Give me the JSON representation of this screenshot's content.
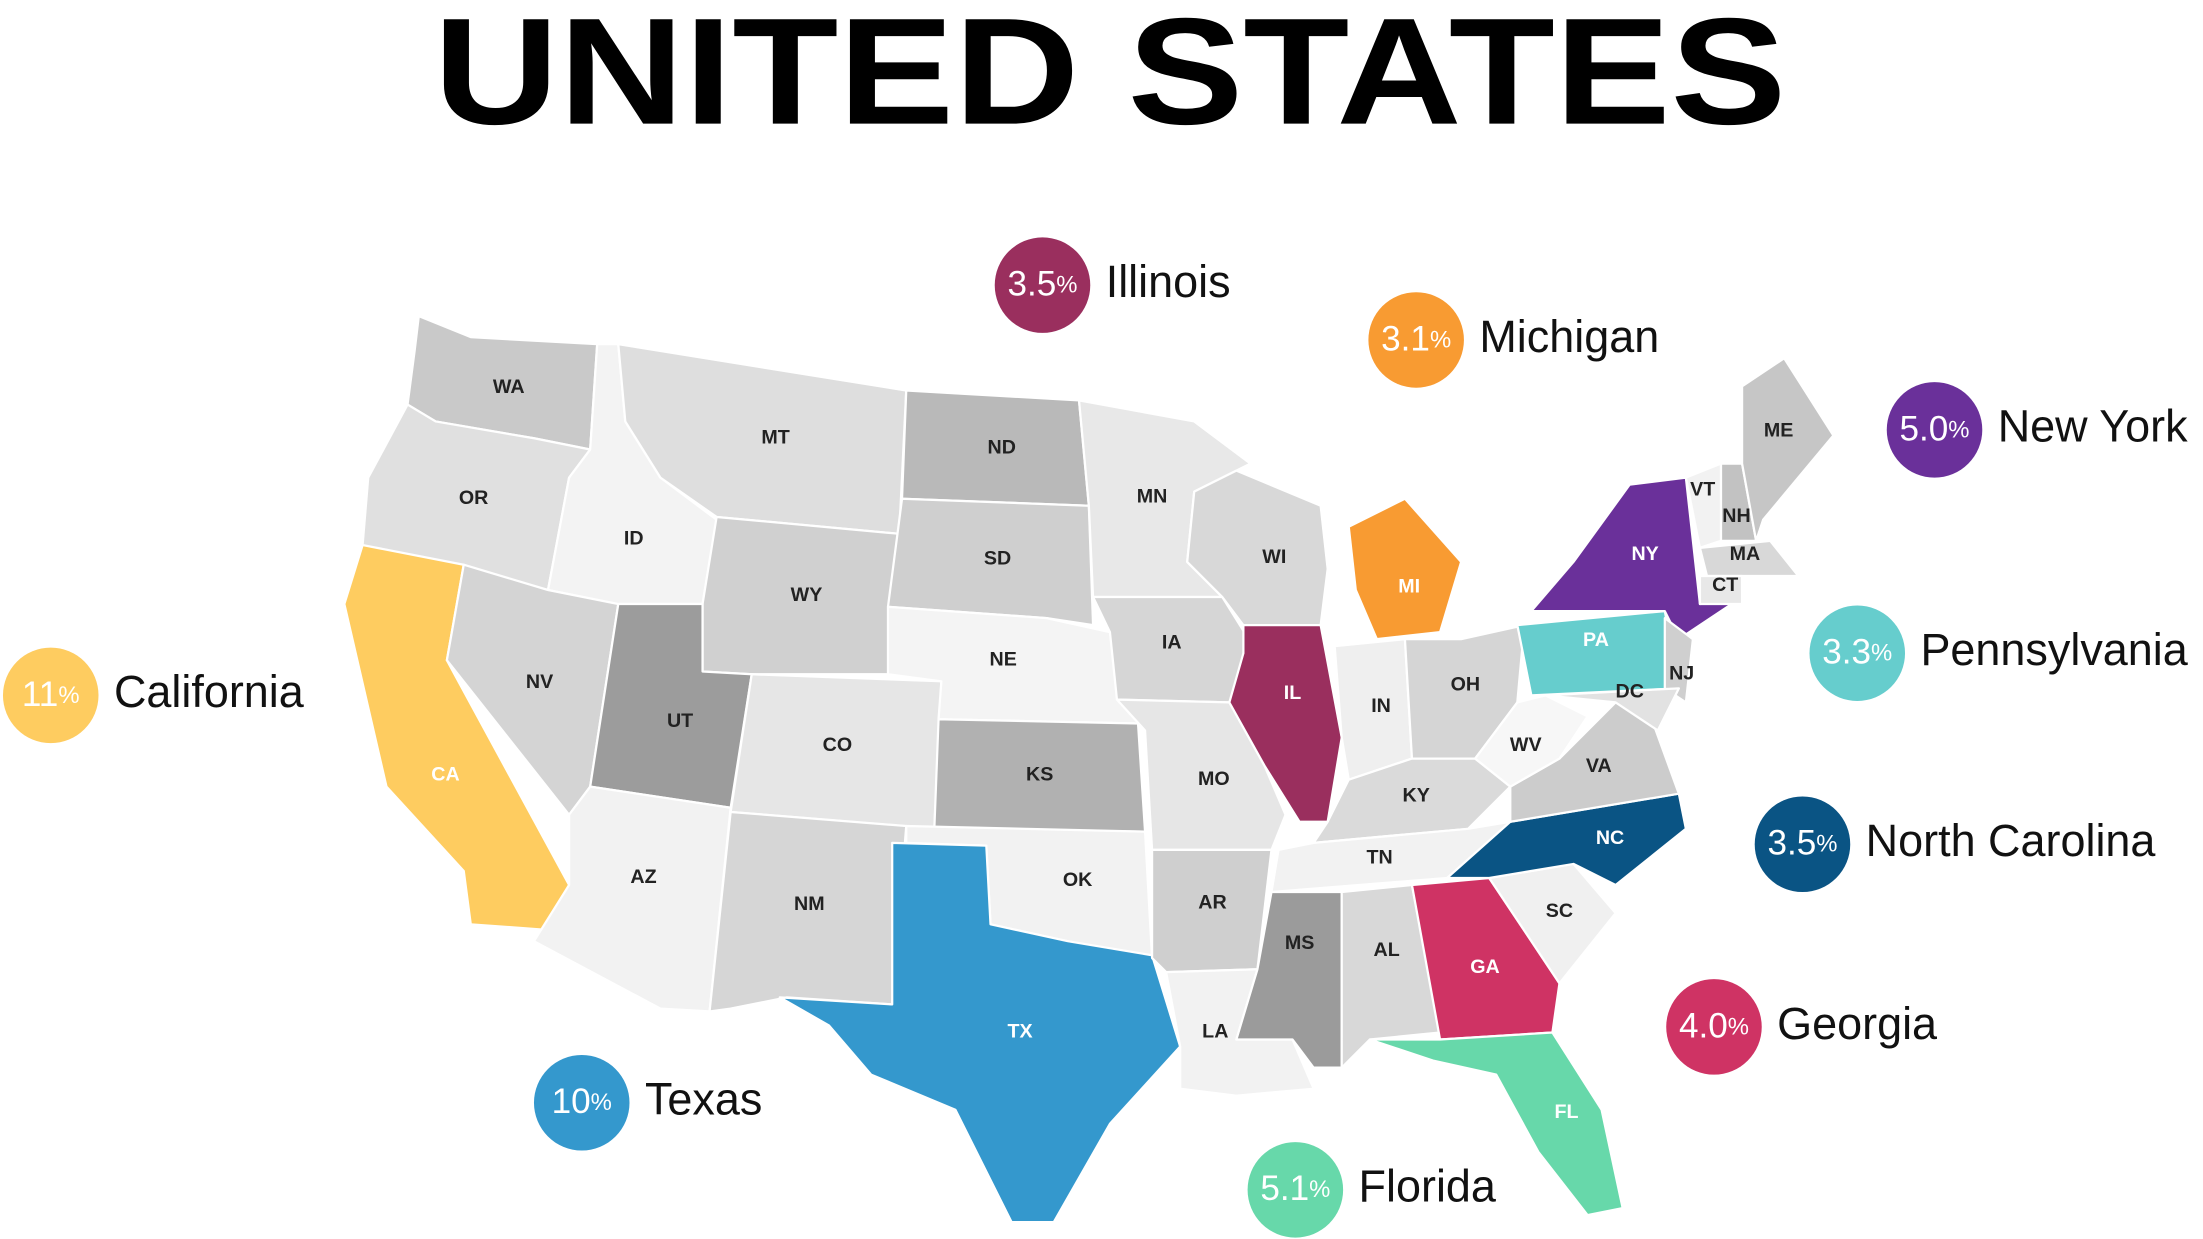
{
  "title": "UNITED STATES",
  "states": [
    {
      "code": "WA",
      "color": "#c9c9c9"
    },
    {
      "code": "OR",
      "color": "#e0e0e0"
    },
    {
      "code": "CA",
      "color": "#fecc60",
      "label_color": "#ffffff"
    },
    {
      "code": "ID",
      "color": "#f3f3f3"
    },
    {
      "code": "NV",
      "color": "#d4d4d4"
    },
    {
      "code": "MT",
      "color": "#dedede"
    },
    {
      "code": "WY",
      "color": "#d0d0d0"
    },
    {
      "code": "UT",
      "color": "#9c9c9c"
    },
    {
      "code": "AZ",
      "color": "#f2f2f2"
    },
    {
      "code": "CO",
      "color": "#e6e6e6"
    },
    {
      "code": "NM",
      "color": "#d6d6d6"
    },
    {
      "code": "ND",
      "color": "#b9b9b9"
    },
    {
      "code": "SD",
      "color": "#cfcfcf"
    },
    {
      "code": "NE",
      "color": "#f4f4f4"
    },
    {
      "code": "KS",
      "color": "#b1b1b1"
    },
    {
      "code": "OK",
      "color": "#f2f2f2"
    },
    {
      "code": "TX",
      "color": "#3498cd",
      "label_color": "#ffffff"
    },
    {
      "code": "MN",
      "color": "#e8e8e8"
    },
    {
      "code": "IA",
      "color": "#d6d6d6"
    },
    {
      "code": "MO",
      "color": "#e6e6e6"
    },
    {
      "code": "AR",
      "color": "#cfcfcf"
    },
    {
      "code": "LA",
      "color": "#f2f2f2"
    },
    {
      "code": "WI",
      "color": "#d8d8d8"
    },
    {
      "code": "IL",
      "color": "#9a2f5e",
      "label_color": "#ffffff"
    },
    {
      "code": "MI",
      "color": "#f89b32",
      "label_color": "#ffffff"
    },
    {
      "code": "IN",
      "color": "#efefef"
    },
    {
      "code": "OH",
      "color": "#d5d5d5"
    },
    {
      "code": "KY",
      "color": "#dadada"
    },
    {
      "code": "TN",
      "color": "#f2f2f2"
    },
    {
      "code": "MS",
      "color": "#9b9b9b"
    },
    {
      "code": "AL",
      "color": "#d8d8d8"
    },
    {
      "code": "GA",
      "color": "#cf3364",
      "label_color": "#ffffff"
    },
    {
      "code": "FL",
      "color": "#67d8aa",
      "label_color": "#ffffff"
    },
    {
      "code": "SC",
      "color": "#f0f0f0"
    },
    {
      "code": "NC",
      "color": "#0a5484",
      "label_color": "#ffffff"
    },
    {
      "code": "VA",
      "color": "#cccccc"
    },
    {
      "code": "WV",
      "color": "#f7f7f7"
    },
    {
      "code": "PA",
      "color": "#66cdcd",
      "label_color": "#ffffff"
    },
    {
      "code": "NY",
      "color": "#6a309a",
      "label_color": "#ffffff"
    },
    {
      "code": "NJ",
      "color": "#cfcfcf"
    },
    {
      "code": "DC",
      "color": "#e2e2e2"
    },
    {
      "code": "VT",
      "color": "#f2f2f2"
    },
    {
      "code": "NH",
      "color": "#c2c2c2"
    },
    {
      "code": "ME",
      "color": "#c6c6c6"
    },
    {
      "code": "MA",
      "color": "#d8d8d8"
    },
    {
      "code": "CT",
      "color": "#e8e8e8"
    }
  ],
  "callouts": [
    {
      "name": "Illinois",
      "value": "3.5",
      "unit": "%",
      "color": "#9a2f5e"
    },
    {
      "name": "Michigan",
      "value": "3.1",
      "unit": "%",
      "color": "#f89b32"
    },
    {
      "name": "New York",
      "value": "5.0",
      "unit": "%",
      "color": "#6a309a"
    },
    {
      "name": "Pennsylvania",
      "value": "3.3",
      "unit": "%",
      "color": "#66cdcd"
    },
    {
      "name": "North Carolina",
      "value": "3.5",
      "unit": "%",
      "color": "#0a5484"
    },
    {
      "name": "Georgia",
      "value": "4.0",
      "unit": "%",
      "color": "#cf3364"
    },
    {
      "name": "Florida",
      "value": "5.1",
      "unit": "%",
      "color": "#67d8aa"
    },
    {
      "name": "Texas",
      "value": "10",
      "unit": "%",
      "color": "#3498cd"
    },
    {
      "name": "California",
      "value": "11",
      "unit": "%",
      "color": "#fecc60"
    }
  ]
}
